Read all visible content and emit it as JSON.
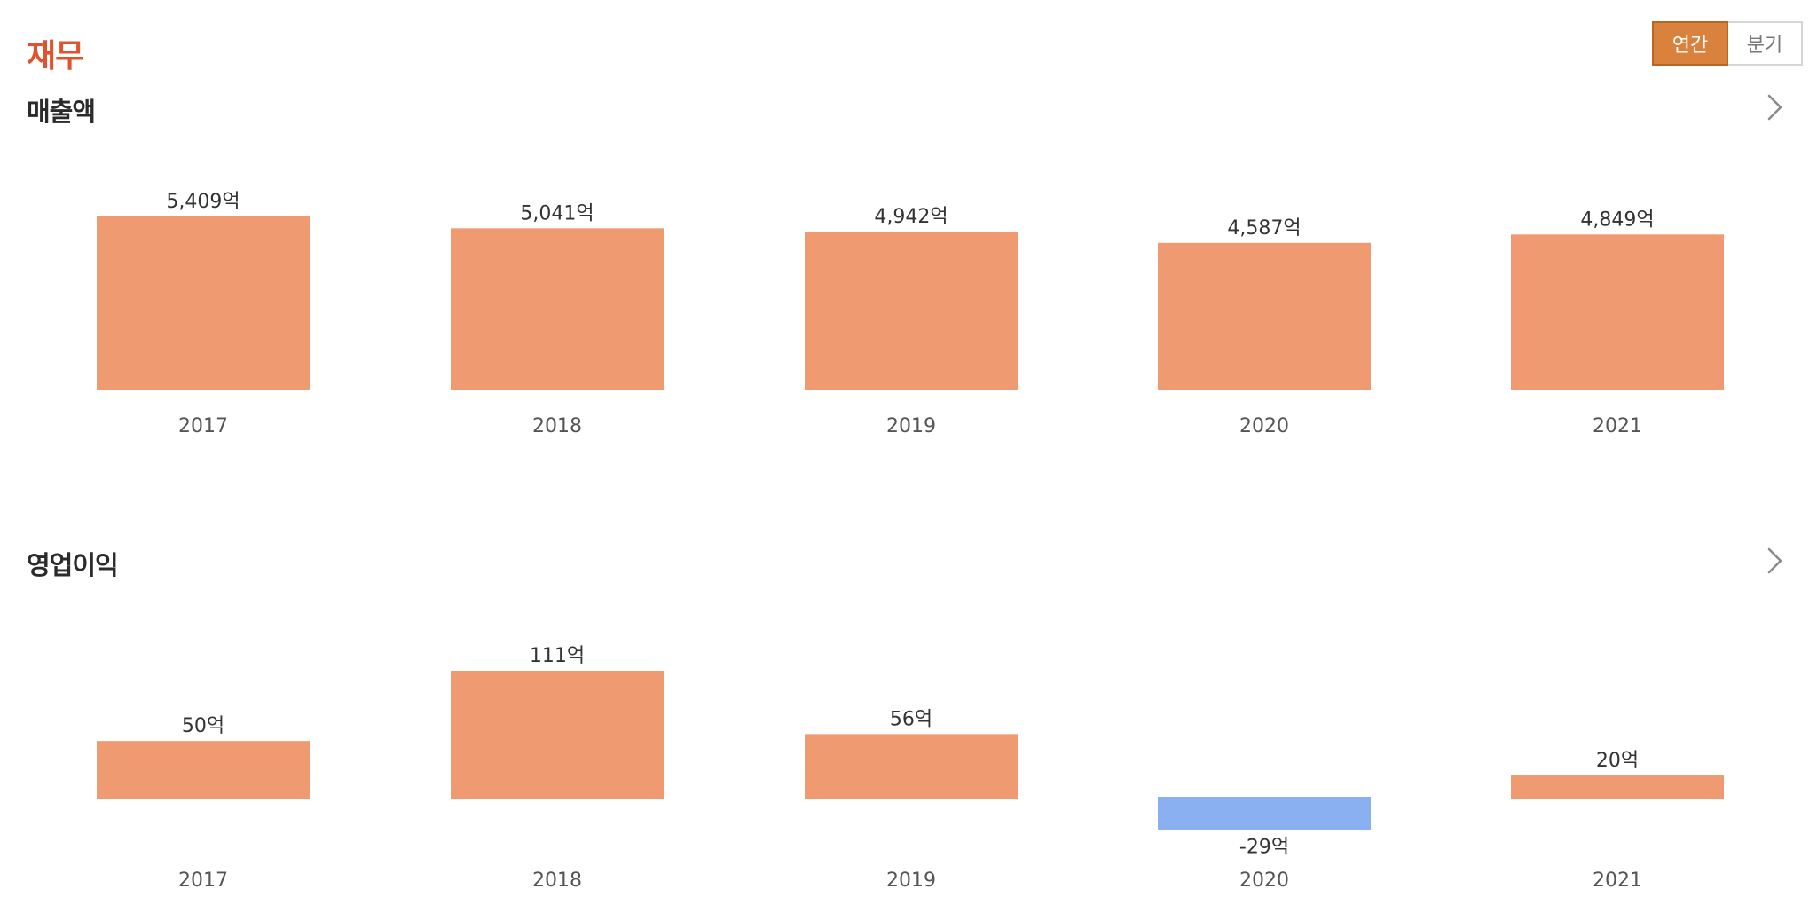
{
  "header": {
    "title": "재무",
    "period_toggle": {
      "annual_label": "연간",
      "quarterly_label": "분기",
      "selected": "연간"
    }
  },
  "colors": {
    "title": "#e0532f",
    "positive_bar": "#ef9a70",
    "negative_bar": "#8ab0f2",
    "toggle_active": "#d9823e"
  },
  "icons": {
    "section_link": "chevron-right-icon"
  },
  "sections": [
    {
      "title": "매출액",
      "chart_data": {
        "type": "bar",
        "categories": [
          "2017",
          "2018",
          "2019",
          "2020",
          "2021"
        ],
        "values": [
          5409,
          5041,
          4942,
          4587,
          4849
        ],
        "value_labels": [
          "5,409억",
          "5,041억",
          "4,942억",
          "4,587억",
          "4,849억"
        ],
        "unit": "억"
      }
    },
    {
      "title": "영업이익",
      "chart_data": {
        "type": "bar",
        "categories": [
          "2017",
          "2018",
          "2019",
          "2020",
          "2021"
        ],
        "values": [
          50,
          111,
          56,
          -29,
          20
        ],
        "value_labels": [
          "50억",
          "111억",
          "56억",
          "-29억",
          "20억"
        ],
        "unit": "억"
      }
    }
  ]
}
